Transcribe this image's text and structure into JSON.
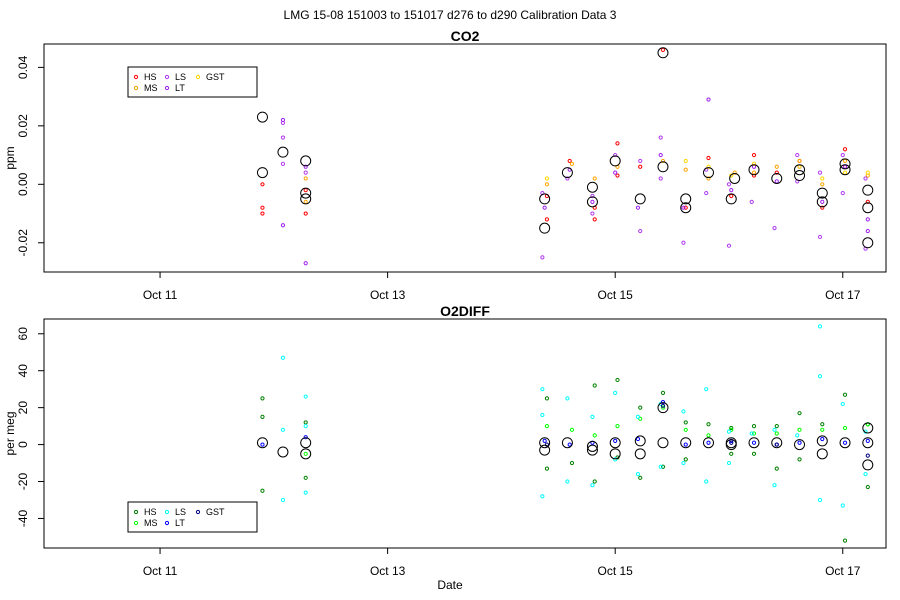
{
  "figure": {
    "title": "LMG   15-08    151003 to 151017    d276 to d290   Calibration Data 3",
    "xlabel": "Date"
  },
  "chart_data": [
    {
      "type": "scatter",
      "title": "CO2",
      "ylabel": "ppm",
      "xlim": [
        9.98,
        17.38
      ],
      "ylim": [
        -0.03,
        0.048
      ],
      "yticks": [
        -0.02,
        0.0,
        0.02,
        0.04
      ],
      "ytick_labels": [
        "-0.02",
        "0.00",
        "0.02",
        "0.04"
      ],
      "xticks": [
        11,
        13,
        15,
        17
      ],
      "xtick_labels": [
        "Oct 11",
        "Oct 13",
        "Oct 15",
        "Oct 17"
      ],
      "legend": {
        "position": "top-left",
        "entries": [
          {
            "name": "HS",
            "color": "#ff0000"
          },
          {
            "name": "MS",
            "color": "#ffa500"
          },
          {
            "name": "LS",
            "color": "#b23aee"
          },
          {
            "name": "LT",
            "color": "#a020f0"
          },
          {
            "name": "GST",
            "color": "#ffd700"
          }
        ]
      },
      "averages": {
        "x": [
          11.9,
          11.9,
          12.08,
          12.28,
          12.28,
          12.28,
          14.38,
          14.38,
          14.58,
          14.8,
          14.8,
          15.0,
          15.22,
          15.42,
          15.42,
          15.62,
          15.62,
          15.82,
          16.02,
          16.05,
          16.22,
          16.42,
          16.62,
          16.62,
          16.82,
          16.82,
          17.02,
          17.02,
          17.22,
          17.22,
          17.22
        ],
        "y": [
          0.023,
          0.004,
          0.011,
          0.008,
          -0.003,
          -0.005,
          -0.015,
          -0.005,
          0.004,
          -0.001,
          -0.006,
          0.008,
          -0.005,
          0.045,
          0.006,
          -0.005,
          -0.008,
          0.004,
          -0.005,
          0.002,
          0.005,
          0.002,
          0.005,
          0.003,
          -0.003,
          -0.006,
          0.007,
          0.005,
          -0.002,
          -0.008,
          -0.02
        ]
      },
      "series": [
        {
          "name": "HS",
          "color": "#ff0000",
          "x": [
            11.9,
            11.9,
            11.9,
            12.28,
            12.28,
            14.4,
            14.4,
            14.6,
            14.82,
            14.82,
            15.02,
            15.02,
            15.22,
            15.42,
            15.62,
            15.82,
            16.02,
            16.22,
            16.22,
            16.42,
            16.62,
            16.82,
            17.02,
            17.02,
            17.22
          ],
          "y": [
            -0.01,
            -0.008,
            0.0,
            -0.002,
            -0.01,
            -0.012,
            -0.004,
            0.008,
            -0.008,
            -0.012,
            0.014,
            0.003,
            0.006,
            0.046,
            -0.008,
            0.009,
            -0.004,
            0.01,
            0.003,
            0.004,
            0.008,
            -0.008,
            0.012,
            0.006,
            -0.006
          ]
        },
        {
          "name": "MS",
          "color": "#ffa500",
          "x": [
            12.28,
            12.28,
            14.4,
            14.62,
            14.82,
            15.02,
            15.42,
            15.62,
            15.82,
            16.05,
            16.22,
            16.42,
            16.62,
            16.82,
            17.02,
            17.22
          ],
          "y": [
            0.002,
            -0.006,
            0.0,
            0.007,
            0.002,
            0.006,
            0.008,
            0.005,
            0.002,
            0.004,
            0.004,
            0.006,
            0.008,
            0.0,
            0.008,
            0.003
          ]
        },
        {
          "name": "LS",
          "color": "#b23aee",
          "x": [
            12.08,
            12.08,
            12.08,
            12.28,
            14.36,
            14.36,
            14.58,
            14.8,
            14.8,
            15.0,
            15.22,
            15.22,
            15.4,
            15.4,
            15.6,
            15.8,
            15.8,
            16.0,
            16.0,
            16.2,
            16.4,
            16.6,
            16.6,
            16.8,
            16.8,
            17.0,
            17.0,
            17.2,
            17.2
          ],
          "y": [
            0.021,
            0.016,
            0.007,
            0.004,
            -0.025,
            -0.003,
            0.002,
            -0.004,
            -0.01,
            0.01,
            -0.016,
            0.008,
            0.016,
            0.002,
            -0.02,
            0.005,
            -0.003,
            -0.021,
            0.0,
            -0.006,
            -0.015,
            0.01,
            0.001,
            -0.018,
            0.004,
            0.01,
            -0.003,
            -0.022,
            0.002
          ]
        },
        {
          "name": "LT",
          "color": "#a020f0",
          "x": [
            12.08,
            12.08,
            12.28,
            12.28,
            14.38,
            14.6,
            14.8,
            15.0,
            15.2,
            15.4,
            15.6,
            15.82,
            16.02,
            16.22,
            16.42,
            16.62,
            16.82,
            17.02,
            17.22,
            17.22
          ],
          "y": [
            0.022,
            -0.014,
            -0.027,
            0.006,
            -0.008,
            0.005,
            -0.006,
            0.004,
            -0.008,
            0.01,
            -0.008,
            0.029,
            -0.002,
            0.006,
            0.001,
            0.006,
            -0.006,
            0.006,
            -0.012,
            -0.016
          ]
        },
        {
          "name": "GST",
          "color": "#ffd700",
          "x": [
            14.4,
            15.62,
            15.82,
            16.02,
            16.22,
            16.62,
            16.82,
            17.02,
            17.22
          ],
          "y": [
            0.002,
            0.008,
            0.006,
            0.003,
            0.007,
            0.006,
            0.002,
            0.004,
            0.004
          ]
        }
      ]
    },
    {
      "type": "scatter",
      "title": "O2DIFF",
      "ylabel": "per meg",
      "xlim": [
        9.98,
        17.38
      ],
      "ylim": [
        -56,
        68
      ],
      "yticks": [
        -40,
        -20,
        0,
        20,
        40,
        60
      ],
      "ytick_labels": [
        "-40",
        "-20",
        "0",
        "20",
        "40",
        "60"
      ],
      "xticks": [
        11,
        13,
        15,
        17
      ],
      "xtick_labels": [
        "Oct 11",
        "Oct 13",
        "Oct 15",
        "Oct 17"
      ],
      "legend": {
        "position": "bottom-left",
        "entries": [
          {
            "name": "HS",
            "color": "#008000"
          },
          {
            "name": "MS",
            "color": "#00ff00"
          },
          {
            "name": "LS",
            "color": "#00ffff"
          },
          {
            "name": "LT",
            "color": "#0000ff"
          },
          {
            "name": "GST",
            "color": "#000080"
          }
        ]
      },
      "averages": {
        "x": [
          11.9,
          12.08,
          12.28,
          12.28,
          14.38,
          14.38,
          14.58,
          14.8,
          14.8,
          15.0,
          15.0,
          15.22,
          15.22,
          15.42,
          15.42,
          15.62,
          15.82,
          16.02,
          16.02,
          16.22,
          16.42,
          16.62,
          16.82,
          16.82,
          17.02,
          17.22,
          17.22,
          17.22
        ],
        "y": [
          1,
          -4,
          1,
          -5,
          1,
          -3,
          1,
          -1,
          -3,
          1,
          -5,
          2,
          -5,
          20,
          1,
          1,
          1,
          1,
          0,
          1,
          1,
          0,
          2,
          -5,
          1,
          9,
          1,
          -11
        ]
      },
      "series": [
        {
          "name": "HS",
          "color": "#008000",
          "x": [
            11.9,
            11.9,
            11.9,
            12.28,
            12.28,
            14.4,
            14.4,
            14.62,
            14.82,
            14.82,
            15.02,
            15.02,
            15.22,
            15.22,
            15.42,
            15.42,
            15.62,
            15.62,
            15.82,
            16.02,
            16.02,
            16.22,
            16.22,
            16.42,
            16.42,
            16.62,
            16.62,
            16.82,
            17.02,
            17.02,
            17.22,
            17.22
          ],
          "y": [
            25,
            15,
            -25,
            12,
            -18,
            25,
            -13,
            -10,
            32,
            -20,
            35,
            -7,
            20,
            -18,
            28,
            -12,
            12,
            -8,
            11,
            9,
            -5,
            10,
            -5,
            10,
            -13,
            17,
            -8,
            11,
            27,
            -52,
            11,
            -23
          ]
        },
        {
          "name": "MS",
          "color": "#00ff00",
          "x": [
            12.28,
            14.4,
            14.62,
            14.82,
            15.02,
            15.22,
            15.42,
            15.62,
            15.82,
            16.02,
            16.22,
            16.42,
            16.62,
            16.82,
            17.02,
            17.22
          ],
          "y": [
            -5,
            10,
            8,
            5,
            10,
            14,
            20,
            8,
            5,
            8,
            6,
            6,
            8,
            8,
            9,
            11
          ]
        },
        {
          "name": "LS",
          "color": "#00ffff",
          "x": [
            12.08,
            12.08,
            12.08,
            12.28,
            12.28,
            12.28,
            14.36,
            14.36,
            14.36,
            14.58,
            14.58,
            14.8,
            14.8,
            15.0,
            15.0,
            15.2,
            15.2,
            15.4,
            15.4,
            15.6,
            15.6,
            15.8,
            15.8,
            16.0,
            16.0,
            16.2,
            16.4,
            16.4,
            16.6,
            16.8,
            16.8,
            16.8,
            17.0,
            17.0,
            17.2,
            17.2
          ],
          "y": [
            47,
            8,
            -30,
            26,
            10,
            -26,
            30,
            16,
            -28,
            25,
            -20,
            15,
            -22,
            28,
            -8,
            15,
            -16,
            22,
            -12,
            18,
            -10,
            30,
            -20,
            7,
            -10,
            6,
            8,
            -22,
            5,
            64,
            37,
            -30,
            22,
            -33,
            7,
            -16
          ]
        },
        {
          "name": "LT",
          "color": "#0000ff",
          "x": [
            11.9,
            12.28,
            14.38,
            14.6,
            14.8,
            15.0,
            15.2,
            15.42,
            15.62,
            15.82,
            16.02,
            16.22,
            16.42,
            16.62,
            16.82,
            17.02,
            17.22
          ],
          "y": [
            0,
            4,
            2,
            0,
            1,
            2,
            3,
            23,
            0,
            1,
            2,
            1,
            0,
            1,
            3,
            1,
            2
          ]
        },
        {
          "name": "GST",
          "color": "#000080",
          "x": [
            14.4,
            15.42,
            16.02,
            16.42,
            17.22
          ],
          "y": [
            0,
            21,
            1,
            0,
            -6
          ]
        }
      ]
    }
  ]
}
